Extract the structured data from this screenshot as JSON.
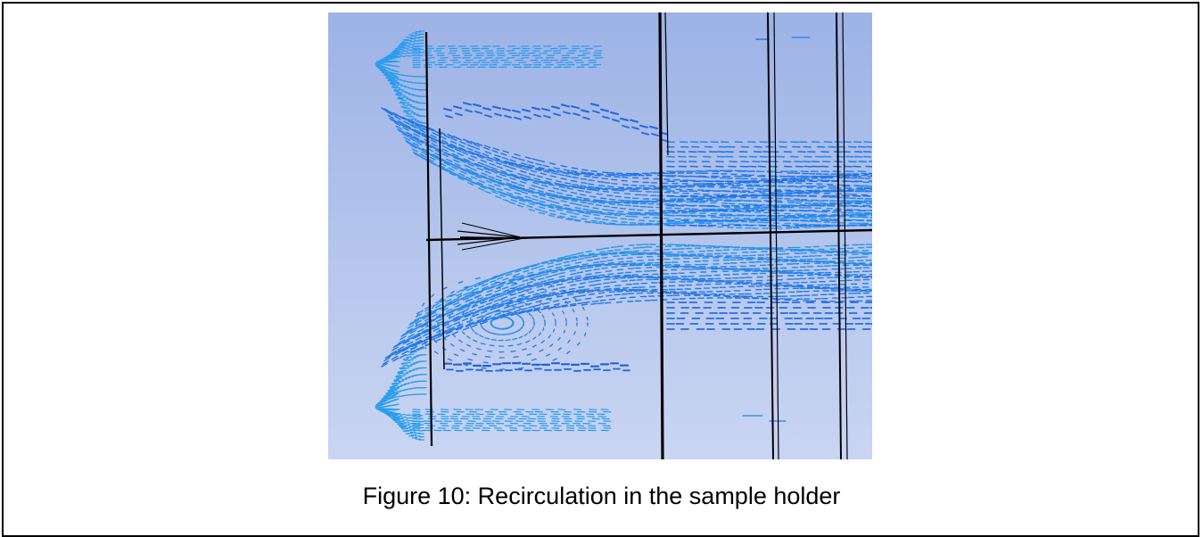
{
  "figure": {
    "caption": "Figure 10: Recirculation in the sample holder",
    "colors": {
      "background_top": "#9db3e6",
      "background_bottom": "#c9d5f2",
      "vector_light": "#2aa3ee",
      "vector_dark": "#1f5fe0",
      "geometry_lines": "#000000"
    }
  }
}
